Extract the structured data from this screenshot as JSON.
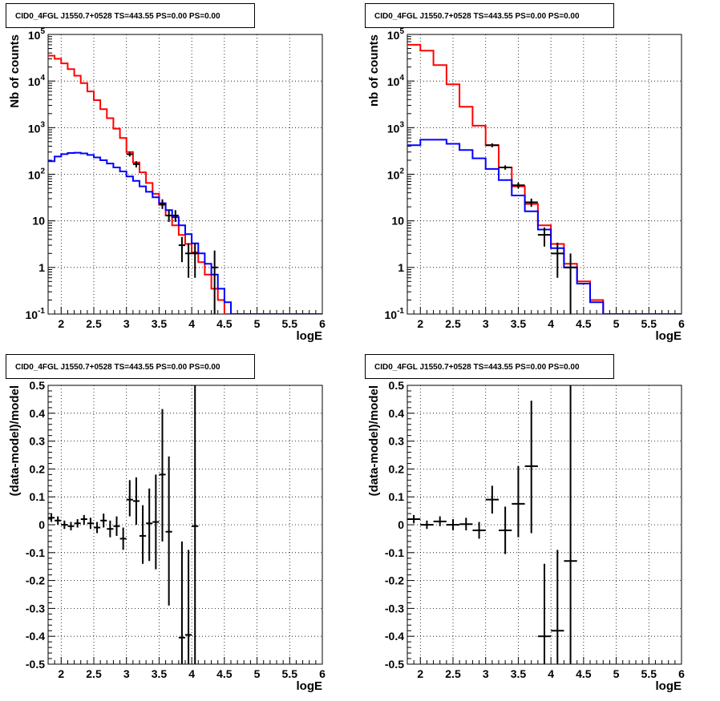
{
  "chart_data": [
    {
      "type": "line",
      "title": "CID0_4FGL J1550.7+0528 TS=443.55 PS=0.00 PS=0.00",
      "xlabel": "logE",
      "ylabel": "Nb of counts",
      "xlim": [
        1.8,
        6.0
      ],
      "ylim": [
        0.1,
        100000
      ],
      "yscale": "log",
      "grid": true,
      "x_ticks": [
        "2",
        "2.5",
        "3",
        "3.5",
        "4",
        "4.5",
        "5",
        "5.5",
        "6"
      ],
      "y_ticks": [
        "10^-1",
        "1",
        "10",
        "10^2",
        "10^3",
        "10^4",
        "10^5"
      ],
      "bin_edges": [
        1.8,
        1.9,
        2.0,
        2.1,
        2.2,
        2.3,
        2.4,
        2.5,
        2.6,
        2.7,
        2.8,
        2.9,
        3.0,
        3.1,
        3.2,
        3.3,
        3.4,
        3.5,
        3.6,
        3.7,
        3.8,
        3.9,
        4.0,
        4.1,
        4.2,
        4.3,
        4.4,
        4.5,
        4.6,
        4.7,
        4.8,
        4.9,
        5.0,
        5.1,
        5.2,
        5.3,
        5.4,
        5.5,
        5.6,
        5.7,
        5.8,
        5.9,
        6.0
      ],
      "series": [
        {
          "color": "#ff0000",
          "style": "step",
          "values": [
            35000,
            30000,
            24000,
            18000,
            13000,
            9000,
            6000,
            3900,
            2500,
            1600,
            950,
            600,
            300,
            180,
            110,
            65,
            38,
            22,
            13,
            8,
            5,
            3.2,
            2.1,
            1.3,
            0.7,
            0.35,
            0.2,
            0.1,
            0.1,
            0.1,
            0.1,
            0.1,
            0.1,
            0.1,
            0.1,
            0.1,
            0.1,
            0.1,
            0.1,
            0.1,
            0.1,
            0.1
          ]
        },
        {
          "color": "#0000ff",
          "style": "step",
          "values": [
            190,
            240,
            270,
            285,
            290,
            280,
            260,
            230,
            200,
            170,
            140,
            115,
            90,
            72,
            55,
            42,
            32,
            24,
            17,
            12,
            8,
            5.2,
            3.3,
            2.0,
            1.2,
            0.7,
            0.35,
            0.18,
            0.1,
            0.1,
            0.1,
            0.1,
            0.1,
            0.1,
            0.1,
            0.1,
            0.1,
            0.1,
            0.1,
            0.1,
            0.1,
            0.1
          ]
        }
      ],
      "points": [
        {
          "x": 3.05,
          "y": 270,
          "ylo": 240,
          "yhi": 300,
          "xerr": 0.05
        },
        {
          "x": 3.15,
          "y": 165,
          "ylo": 140,
          "yhi": 190,
          "xerr": 0.05
        },
        {
          "x": 3.55,
          "y": 23,
          "ylo": 18,
          "yhi": 29,
          "xerr": 0.05
        },
        {
          "x": 3.65,
          "y": 13,
          "ylo": 9.5,
          "yhi": 17,
          "xerr": 0.05
        },
        {
          "x": 3.75,
          "y": 13,
          "ylo": 9.5,
          "yhi": 17,
          "xerr": 0.05
        },
        {
          "x": 3.85,
          "y": 3,
          "ylo": 1.3,
          "yhi": 4.5,
          "xerr": 0.05
        },
        {
          "x": 3.95,
          "y": 2,
          "ylo": 0.6,
          "yhi": 3.3,
          "xerr": 0.05
        },
        {
          "x": 4.05,
          "y": 2,
          "ylo": 0.6,
          "yhi": 3.3,
          "xerr": 0.05
        },
        {
          "x": 4.35,
          "y": 1,
          "ylo": 0.1,
          "yhi": 2.3,
          "xerr": 0.05
        }
      ]
    },
    {
      "type": "line",
      "title": "CID0_4FGL J1550.7+0528 TS=443.55 PS=0.00 PS=0.00",
      "xlabel": "logE",
      "ylabel": "nb of counts",
      "xlim": [
        1.8,
        6.0
      ],
      "ylim": [
        0.1,
        100000
      ],
      "yscale": "log",
      "grid": true,
      "x_ticks": [
        "2",
        "2.5",
        "3",
        "3.5",
        "4",
        "4.5",
        "5",
        "5.5",
        "6"
      ],
      "y_ticks": [
        "10^-1",
        "1",
        "10",
        "10^2",
        "10^3",
        "10^4",
        "10^5"
      ],
      "bin_edges": [
        1.8,
        2.0,
        2.2,
        2.4,
        2.6,
        2.8,
        3.0,
        3.2,
        3.4,
        3.6,
        3.8,
        4.0,
        4.2,
        4.4,
        4.6,
        4.8,
        5.0,
        5.2,
        5.4,
        5.6,
        5.8,
        6.0
      ],
      "series": [
        {
          "color": "#ff0000",
          "style": "step",
          "values": [
            60000,
            45000,
            22000,
            8500,
            2800,
            1100,
            420,
            140,
            55,
            23,
            8,
            3.2,
            1.2,
            0.5,
            0.2,
            0.1,
            0.1,
            0.1,
            0.1,
            0.1,
            0.1
          ]
        },
        {
          "color": "#0000ff",
          "style": "step",
          "values": [
            420,
            550,
            550,
            450,
            330,
            220,
            130,
            75,
            35,
            16,
            6.5,
            2.6,
            1.0,
            0.45,
            0.18,
            0.1,
            0.1,
            0.1,
            0.1,
            0.1,
            0.1
          ]
        }
      ],
      "points": [
        {
          "x": 3.1,
          "y": 420,
          "ylo": 380,
          "yhi": 460,
          "xerr": 0.1
        },
        {
          "x": 3.3,
          "y": 140,
          "ylo": 125,
          "yhi": 155,
          "xerr": 0.1
        },
        {
          "x": 3.5,
          "y": 58,
          "ylo": 50,
          "yhi": 66,
          "xerr": 0.1
        },
        {
          "x": 3.7,
          "y": 25,
          "ylo": 20,
          "yhi": 30,
          "xerr": 0.1
        },
        {
          "x": 3.9,
          "y": 5,
          "ylo": 2.8,
          "yhi": 7.2,
          "xerr": 0.1
        },
        {
          "x": 4.1,
          "y": 2,
          "ylo": 0.6,
          "yhi": 3.4,
          "xerr": 0.1
        },
        {
          "x": 4.3,
          "y": 1,
          "ylo": 0.1,
          "yhi": 2.0,
          "xerr": 0.1
        }
      ]
    },
    {
      "type": "scatter",
      "title": "CID0_4FGL J1550.7+0528 TS=443.55 PS=0.00 PS=0.00",
      "xlabel": "logE",
      "ylabel": "(data-model)/model",
      "xlim": [
        1.8,
        6.0
      ],
      "ylim": [
        -0.5,
        0.5
      ],
      "grid": true,
      "x_ticks": [
        "2",
        "2.5",
        "3",
        "3.5",
        "4",
        "4.5",
        "5",
        "5.5",
        "6"
      ],
      "y_ticks": [
        "-0.5",
        "-0.4",
        "-0.3",
        "-0.2",
        "-0.1",
        "0",
        "0.1",
        "0.2",
        "0.3",
        "0.4",
        "0.5"
      ],
      "points": [
        {
          "x": 1.85,
          "y": 0.025,
          "ylo": 0.01,
          "yhi": 0.04,
          "xerr": 0.05
        },
        {
          "x": 1.95,
          "y": 0.015,
          "ylo": 0.0,
          "yhi": 0.03,
          "xerr": 0.05
        },
        {
          "x": 2.05,
          "y": 0.0,
          "ylo": -0.015,
          "yhi": 0.015,
          "xerr": 0.05
        },
        {
          "x": 2.15,
          "y": -0.005,
          "ylo": -0.02,
          "yhi": 0.01,
          "xerr": 0.05
        },
        {
          "x": 2.25,
          "y": 0.005,
          "ylo": -0.01,
          "yhi": 0.02,
          "xerr": 0.05
        },
        {
          "x": 2.35,
          "y": 0.02,
          "ylo": 0.0,
          "yhi": 0.035,
          "xerr": 0.05
        },
        {
          "x": 2.45,
          "y": 0.005,
          "ylo": -0.015,
          "yhi": 0.025,
          "xerr": 0.05
        },
        {
          "x": 2.55,
          "y": -0.01,
          "ylo": -0.03,
          "yhi": 0.01,
          "xerr": 0.05
        },
        {
          "x": 2.65,
          "y": 0.015,
          "ylo": -0.01,
          "yhi": 0.04,
          "xerr": 0.05
        },
        {
          "x": 2.75,
          "y": -0.015,
          "ylo": -0.045,
          "yhi": 0.015,
          "xerr": 0.05
        },
        {
          "x": 2.85,
          "y": -0.005,
          "ylo": -0.04,
          "yhi": 0.03,
          "xerr": 0.05
        },
        {
          "x": 2.95,
          "y": -0.05,
          "ylo": -0.09,
          "yhi": -0.01,
          "xerr": 0.05
        },
        {
          "x": 3.05,
          "y": 0.09,
          "ylo": 0.03,
          "yhi": 0.16,
          "xerr": 0.05
        },
        {
          "x": 3.15,
          "y": 0.085,
          "ylo": 0.0,
          "yhi": 0.17,
          "xerr": 0.05
        },
        {
          "x": 3.25,
          "y": -0.04,
          "ylo": -0.14,
          "yhi": 0.07,
          "xerr": 0.05
        },
        {
          "x": 3.35,
          "y": 0.005,
          "ylo": -0.13,
          "yhi": 0.13,
          "xerr": 0.05
        },
        {
          "x": 3.45,
          "y": 0.01,
          "ylo": -0.16,
          "yhi": 0.18,
          "xerr": 0.05
        },
        {
          "x": 3.55,
          "y": 0.18,
          "ylo": -0.06,
          "yhi": 0.415,
          "xerr": 0.05
        },
        {
          "x": 3.65,
          "y": -0.025,
          "ylo": -0.29,
          "yhi": 0.245,
          "xerr": 0.05
        },
        {
          "x": 3.85,
          "y": -0.405,
          "ylo": -0.5,
          "yhi": -0.06,
          "xerr": 0.05
        },
        {
          "x": 3.95,
          "y": -0.395,
          "ylo": -0.5,
          "yhi": -0.09,
          "xerr": 0.05
        },
        {
          "x": 4.05,
          "y": -0.005,
          "ylo": -0.5,
          "yhi": 0.5,
          "xerr": 0.05
        }
      ]
    },
    {
      "type": "scatter",
      "title": "CID0_4FGL J1550.7+0528 TS=443.55 PS=0.00 PS=0.00",
      "xlabel": "logE",
      "ylabel": "(data-model)/model",
      "xlim": [
        1.8,
        6.0
      ],
      "ylim": [
        -0.5,
        0.5
      ],
      "grid": true,
      "x_ticks": [
        "2",
        "2.5",
        "3",
        "3.5",
        "4",
        "4.5",
        "5",
        "5.5",
        "6"
      ],
      "y_ticks": [
        "-0.5",
        "-0.4",
        "-0.3",
        "-0.2",
        "-0.1",
        "0",
        "0.1",
        "0.2",
        "0.3",
        "0.4",
        "0.5"
      ],
      "points": [
        {
          "x": 1.9,
          "y": 0.02,
          "ylo": 0.005,
          "yhi": 0.035,
          "xerr": 0.1
        },
        {
          "x": 2.1,
          "y": 0.0,
          "ylo": -0.015,
          "yhi": 0.015,
          "xerr": 0.1
        },
        {
          "x": 2.3,
          "y": 0.012,
          "ylo": -0.005,
          "yhi": 0.03,
          "xerr": 0.1
        },
        {
          "x": 2.5,
          "y": 0.0,
          "ylo": -0.02,
          "yhi": 0.02,
          "xerr": 0.1
        },
        {
          "x": 2.7,
          "y": 0.002,
          "ylo": -0.02,
          "yhi": 0.025,
          "xerr": 0.1
        },
        {
          "x": 2.9,
          "y": -0.02,
          "ylo": -0.05,
          "yhi": 0.01,
          "xerr": 0.1
        },
        {
          "x": 3.1,
          "y": 0.09,
          "ylo": 0.04,
          "yhi": 0.14,
          "xerr": 0.1
        },
        {
          "x": 3.3,
          "y": -0.02,
          "ylo": -0.105,
          "yhi": 0.065,
          "xerr": 0.1
        },
        {
          "x": 3.5,
          "y": 0.075,
          "ylo": -0.045,
          "yhi": 0.21,
          "xerr": 0.1
        },
        {
          "x": 3.7,
          "y": 0.21,
          "ylo": -0.03,
          "yhi": 0.445,
          "xerr": 0.1
        },
        {
          "x": 3.9,
          "y": -0.4,
          "ylo": -0.5,
          "yhi": -0.14,
          "xerr": 0.1
        },
        {
          "x": 4.1,
          "y": -0.38,
          "ylo": -0.5,
          "yhi": -0.09,
          "xerr": 0.1
        },
        {
          "x": 4.3,
          "y": -0.13,
          "ylo": -0.5,
          "yhi": 0.5,
          "xerr": 0.1
        }
      ]
    }
  ]
}
